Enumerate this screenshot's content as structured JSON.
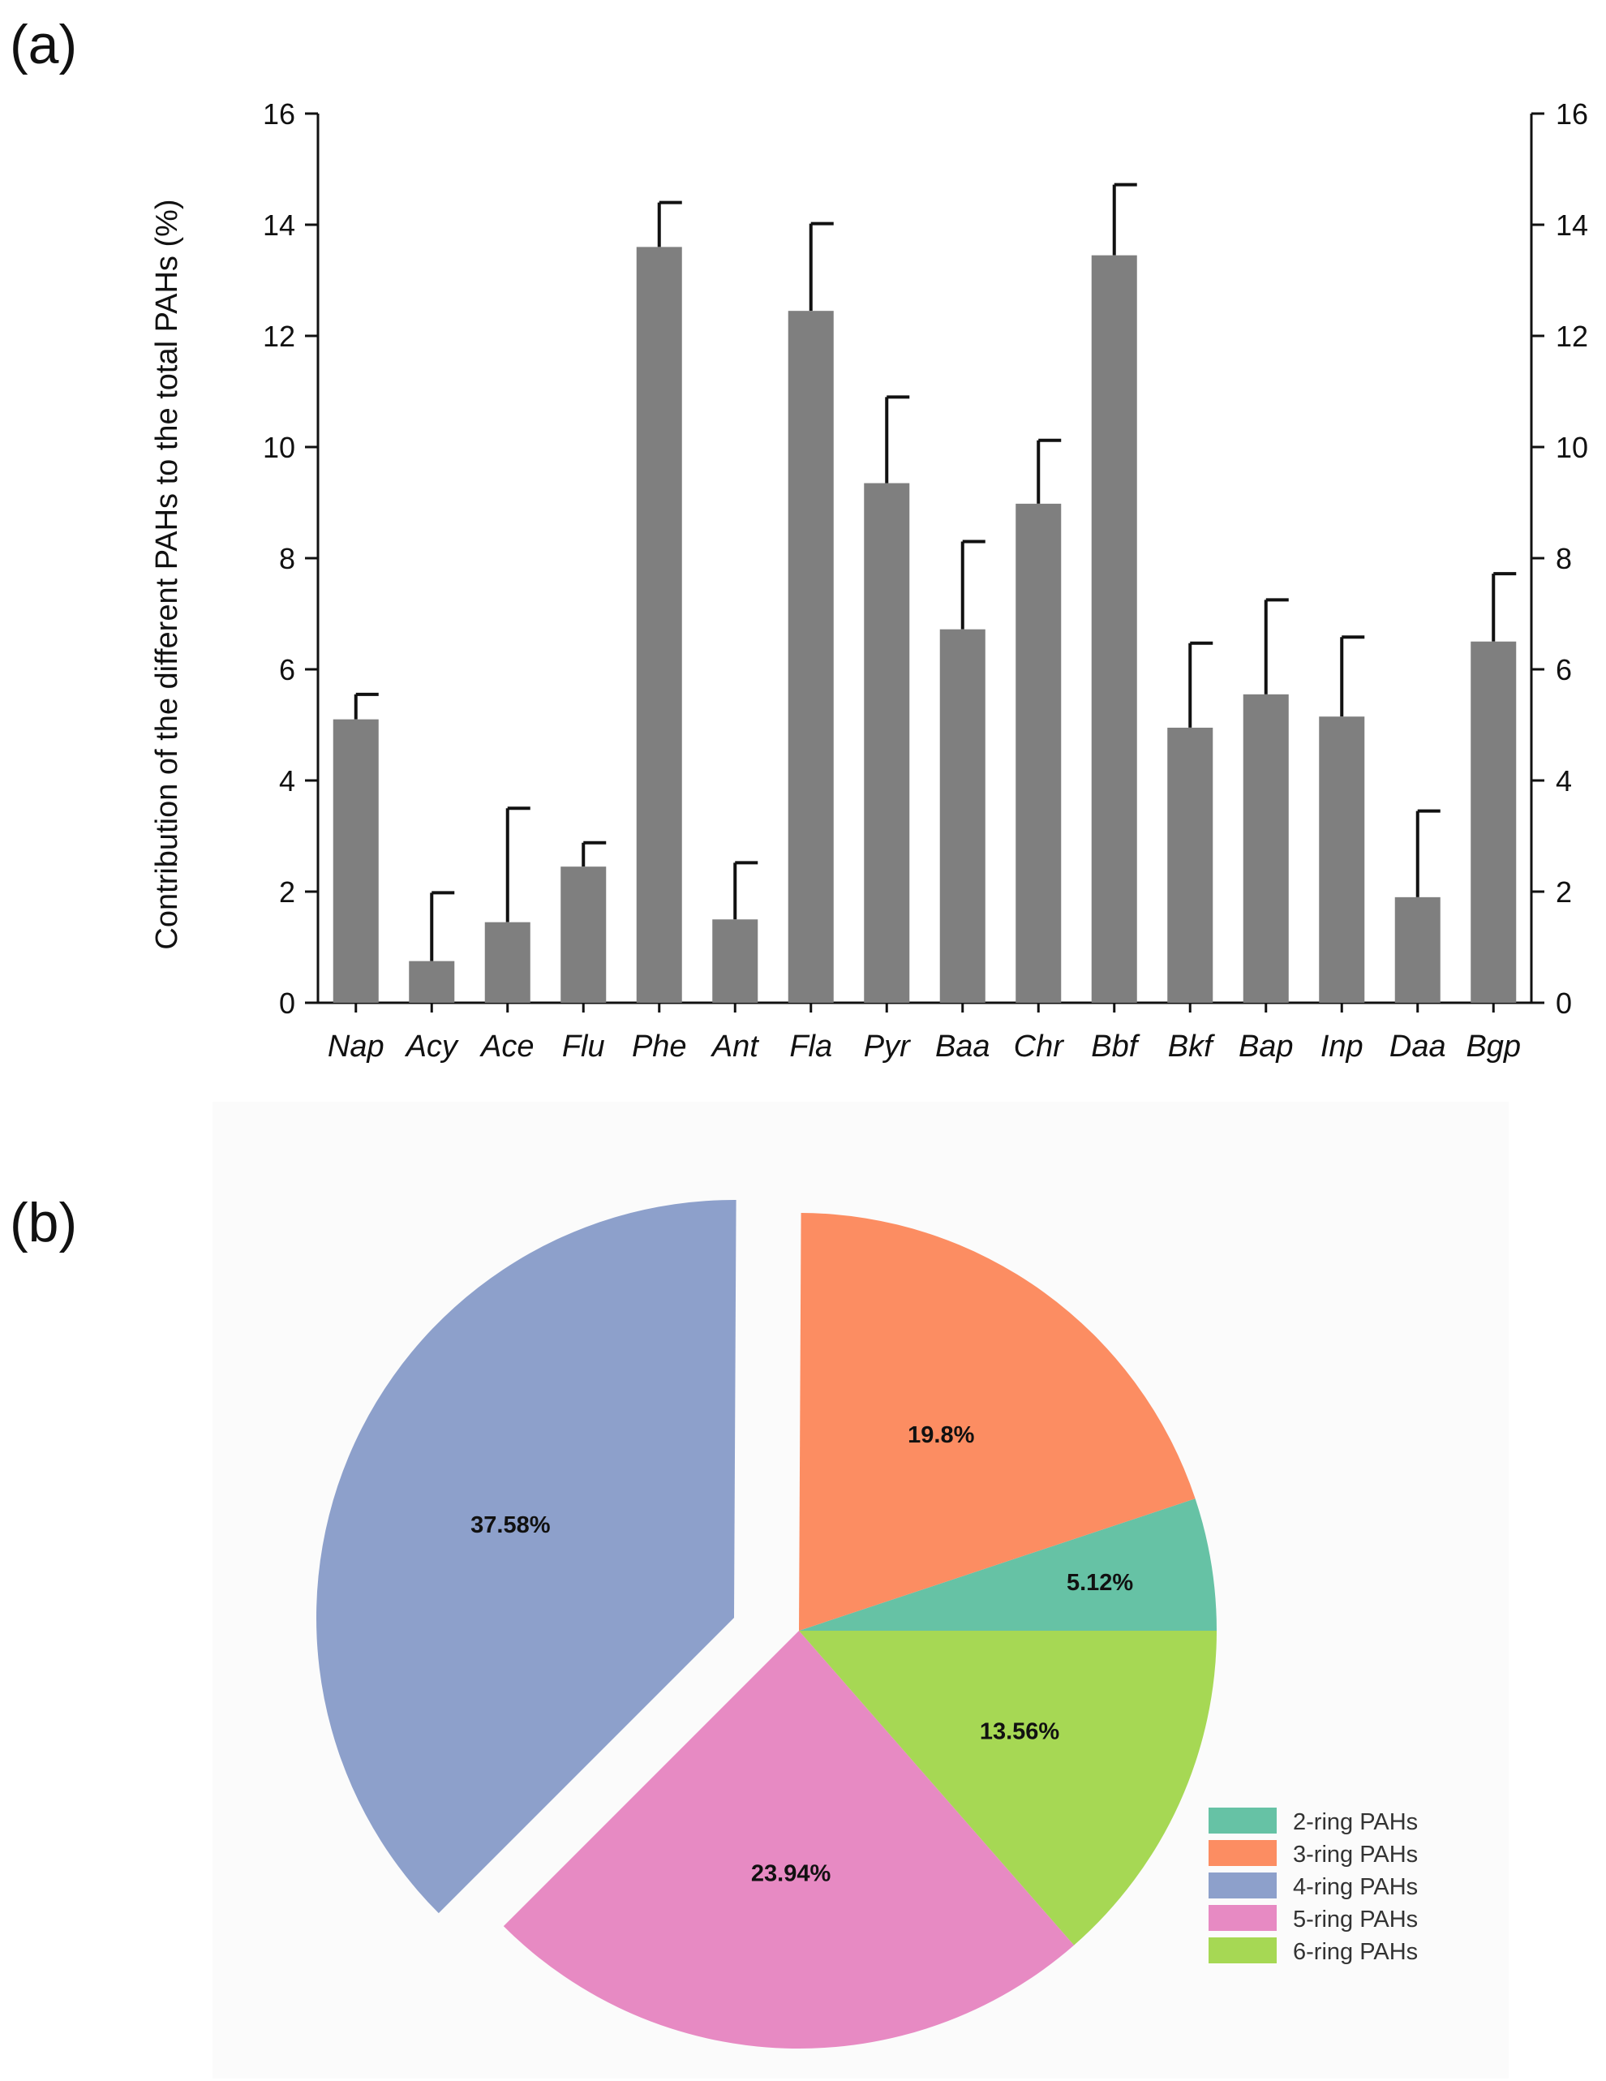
{
  "panels": {
    "a_label": "(a)",
    "b_label": "(b)"
  },
  "chart_data": [
    {
      "type": "bar",
      "title": "",
      "categories": [
        "Nap",
        "Acy",
        "Ace",
        "Flu",
        "Phe",
        "Ant",
        "Fla",
        "Pyr",
        "Baa",
        "Chr",
        "Bbf",
        "Bkf",
        "Bap",
        "Inp",
        "Daa",
        "Bgp"
      ],
      "values": [
        5.1,
        0.75,
        1.45,
        2.45,
        13.6,
        1.5,
        12.45,
        9.35,
        6.72,
        8.98,
        13.45,
        4.95,
        5.55,
        5.15,
        1.9,
        6.5
      ],
      "error_upper": [
        5.55,
        1.98,
        3.5,
        2.88,
        14.4,
        2.52,
        14.02,
        10.9,
        8.3,
        10.12,
        14.72,
        6.47,
        7.25,
        6.58,
        3.45,
        7.72
      ],
      "xlabel": "",
      "ylabel": "Contribution of the different PAHs to the total PAHs (%)",
      "ylim": [
        0,
        16
      ],
      "yticks": [
        0,
        2,
        4,
        6,
        8,
        10,
        12,
        14,
        16
      ],
      "ytick_labels": [
        "0",
        "2",
        "4",
        "6",
        "8",
        "10",
        "12",
        "14",
        "16"
      ],
      "bar_color": "#7f7f7f",
      "grid": false
    },
    {
      "type": "pie",
      "labels": [
        "2-ring PAHs",
        "3-ring PAHs",
        "4-ring PAHs",
        "5-ring PAHs",
        "6-ring PAHs"
      ],
      "values": [
        5.12,
        19.8,
        37.58,
        23.94,
        13.56
      ],
      "value_labels": [
        "5.12%",
        "19.8%",
        "37.58%",
        "23.94%",
        "13.56%"
      ],
      "colors": [
        "#66c2a5",
        "#fc8d62",
        "#8da0cb",
        "#e78ac3",
        "#a6d854"
      ],
      "exploded": "4-ring PAHs",
      "legend_position": "bottom-right"
    }
  ]
}
